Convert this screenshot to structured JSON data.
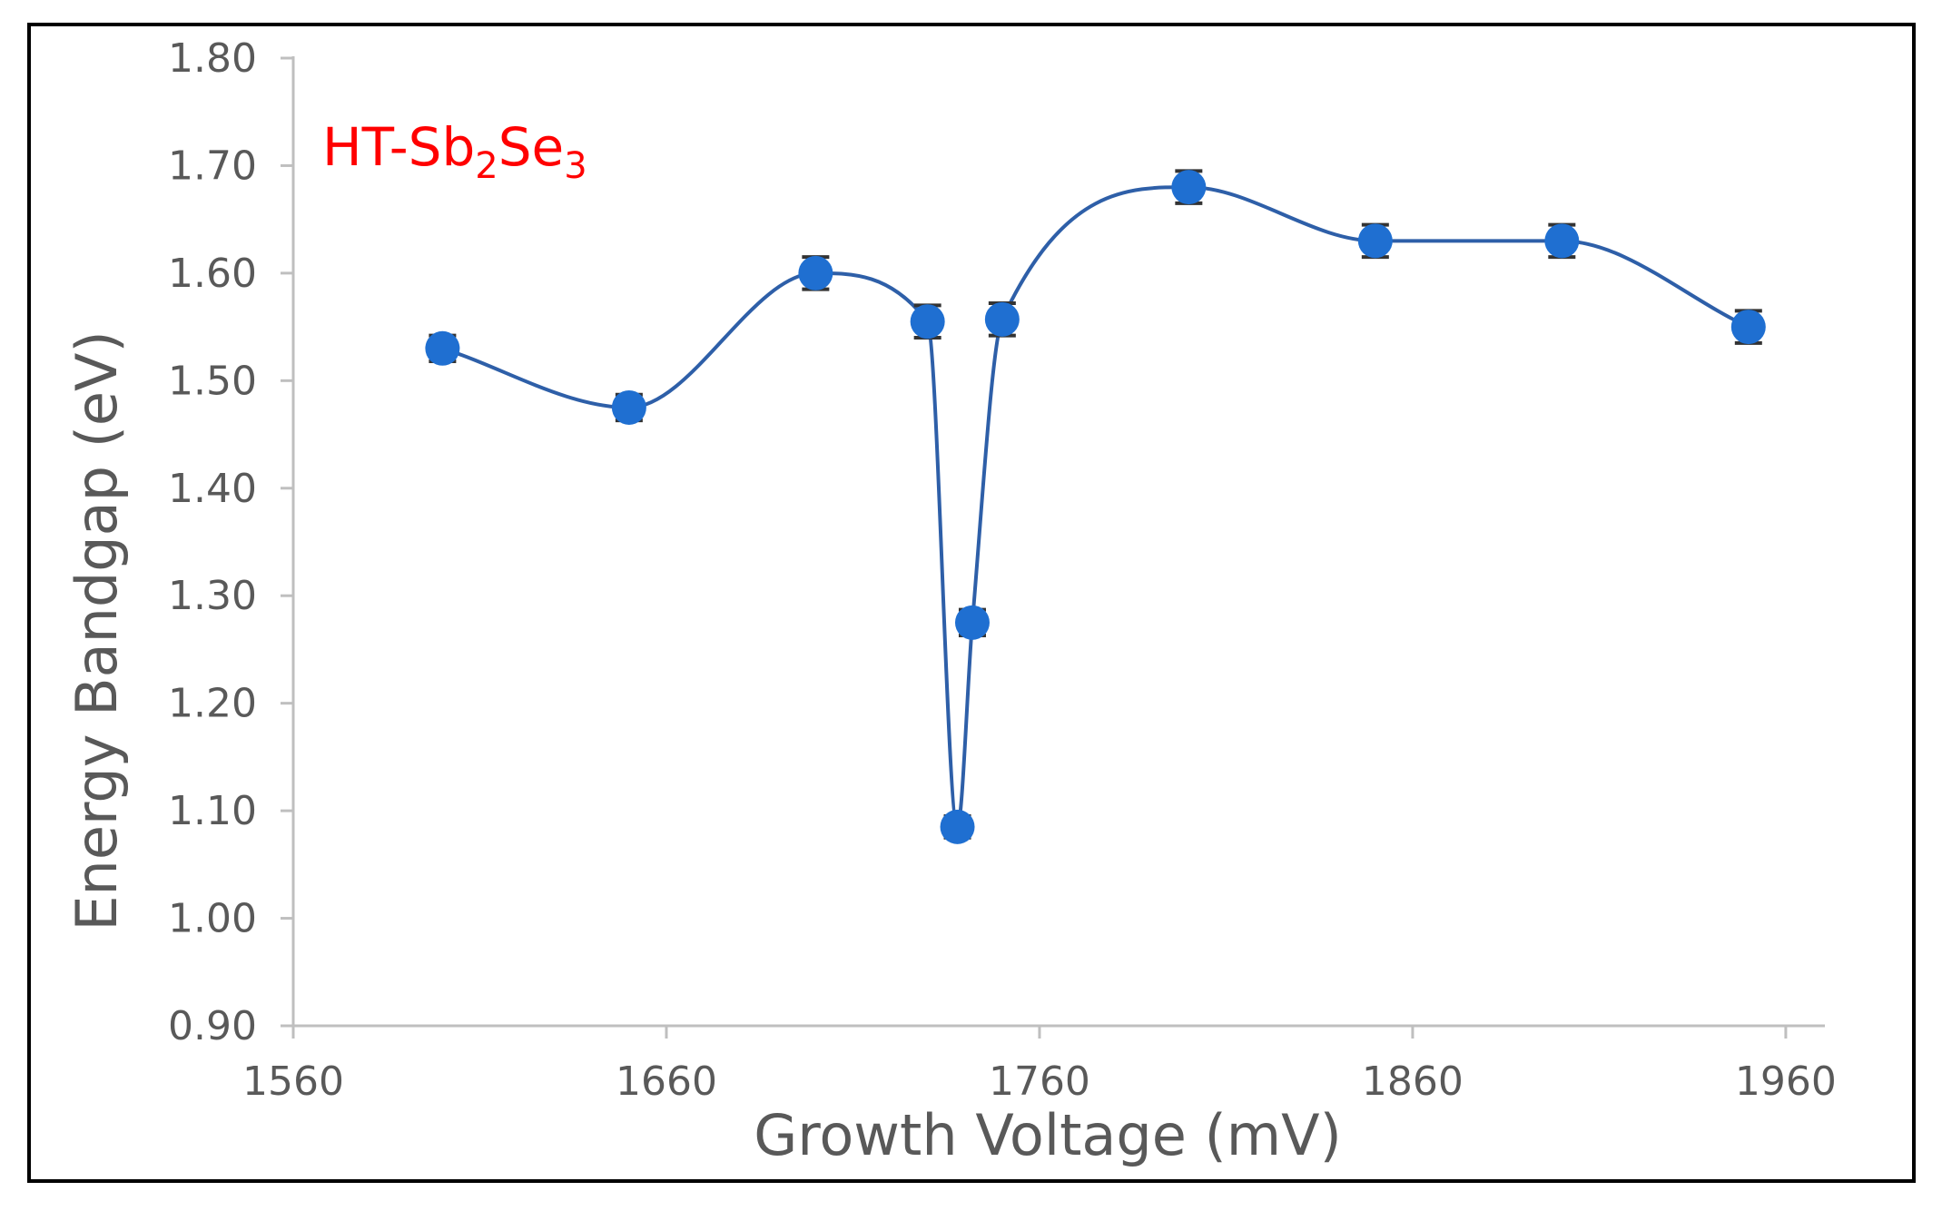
{
  "chart_data": {
    "type": "scatter",
    "title": "",
    "annotation": {
      "base": "HT-Sb",
      "sub1": "2",
      "mid": "Se",
      "sub2": "3"
    },
    "xlabel": "Growth Voltage (mV)",
    "ylabel": "Energy Bandgap (eV)",
    "xlim": [
      1560,
      1970
    ],
    "ylim": [
      0.9,
      1.8
    ],
    "x_ticks": [
      1560,
      1660,
      1760,
      1860,
      1960
    ],
    "x_tick_labels": [
      "1560",
      "1660",
      "1760",
      "1860",
      "1960"
    ],
    "y_ticks": [
      0.9,
      1.0,
      1.1,
      1.2,
      1.3,
      1.4,
      1.5,
      1.6,
      1.7,
      1.8
    ],
    "y_tick_labels": [
      "0.90",
      "1.00",
      "1.10",
      "1.20",
      "1.30",
      "1.40",
      "1.50",
      "1.60",
      "1.70",
      "1.80"
    ],
    "grid": false,
    "line_style": "smooth",
    "series": [
      {
        "name": "HT-Sb2Se3",
        "color": "#1f6fd1",
        "line_color": "#2e5fa8",
        "x": [
          1600,
          1650,
          1700,
          1730,
          1738,
          1742,
          1750,
          1800,
          1850,
          1900,
          1950
        ],
        "y": [
          1.53,
          1.475,
          1.6,
          1.555,
          1.085,
          1.275,
          1.557,
          1.68,
          1.63,
          1.63,
          1.55
        ],
        "error": [
          0.012,
          0.012,
          0.015,
          0.015,
          0.01,
          0.012,
          0.015,
          0.015,
          0.015,
          0.015,
          0.015
        ]
      }
    ]
  }
}
